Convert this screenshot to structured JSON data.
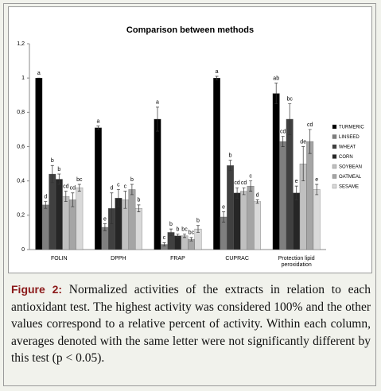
{
  "chart_data": {
    "type": "bar",
    "title": "Comparison between methods",
    "categories": [
      "FOLIN",
      "DPPH",
      "FRAP",
      "CUPRAC",
      "Protection lipid peroxidation"
    ],
    "ylim": [
      0,
      1.2
    ],
    "yticks": [
      0,
      {
        "value": 0.2,
        "label": "0,2"
      },
      {
        "value": 0.4,
        "label": "0,4"
      },
      {
        "value": 0.6,
        "label": "0,6"
      },
      {
        "value": 0.8,
        "label": "0,8"
      },
      1,
      {
        "value": 1.2,
        "label": "1,2"
      }
    ],
    "legend": "right",
    "series": [
      {
        "name": "TURMERIC",
        "color": "#000000",
        "values": [
          1.0,
          0.71,
          0.76,
          1.0,
          0.91
        ],
        "errors": [
          0.0,
          0.01,
          0.07,
          0.01,
          0.06
        ],
        "letters": [
          "a",
          "a",
          "a",
          "a",
          "ab"
        ]
      },
      {
        "name": "LINSEED",
        "color": "#7f7f7f",
        "values": [
          0.26,
          0.13,
          0.03,
          0.19,
          0.63
        ],
        "errors": [
          0.02,
          0.02,
          0.01,
          0.03,
          0.03
        ],
        "letters": [
          "d",
          "e",
          "c",
          "e",
          "cd"
        ]
      },
      {
        "name": "WHEAT",
        "color": "#404040",
        "values": [
          0.44,
          0.24,
          0.1,
          0.49,
          0.76
        ],
        "errors": [
          0.05,
          0.09,
          0.02,
          0.03,
          0.09
        ],
        "letters": [
          "b",
          "d",
          "b",
          "b",
          "bc"
        ]
      },
      {
        "name": "CORN",
        "color": "#262626",
        "values": [
          0.41,
          0.3,
          0.08,
          0.33,
          0.33
        ],
        "errors": [
          0.03,
          0.05,
          0.01,
          0.03,
          0.04
        ],
        "letters": [
          "b",
          "c",
          "b",
          "cd",
          "e"
        ]
      },
      {
        "name": "SOYBEAN",
        "color": "#c0c0c0",
        "values": [
          0.31,
          0.29,
          0.08,
          0.34,
          0.5
        ],
        "errors": [
          0.03,
          0.05,
          0.01,
          0.02,
          0.1
        ],
        "letters": [
          "cd",
          "c",
          "bc",
          "cd",
          "de"
        ]
      },
      {
        "name": "OATMEAL",
        "color": "#a5a5a5",
        "values": [
          0.29,
          0.35,
          0.06,
          0.37,
          0.63
        ],
        "errors": [
          0.04,
          0.03,
          0.01,
          0.03,
          0.07
        ],
        "letters": [
          "cd",
          "b",
          "bc",
          "c",
          "cd"
        ]
      },
      {
        "name": "SESAME",
        "color": "#d9d9d9",
        "values": [
          0.36,
          0.24,
          0.12,
          0.28,
          0.35
        ],
        "errors": [
          0.02,
          0.02,
          0.02,
          0.01,
          0.03
        ],
        "letters": [
          "bc",
          "b",
          "b",
          "d",
          "e"
        ]
      }
    ]
  },
  "caption": {
    "label": "Figure 2:",
    "text": "Normalized activities of the extracts in relation to each antioxidant test. The highest activity was considered 100% and the other values correspond to a relative percent of activity. Within each column, averages denoted with the same letter were not significantly different by this test (p < 0.05)."
  }
}
